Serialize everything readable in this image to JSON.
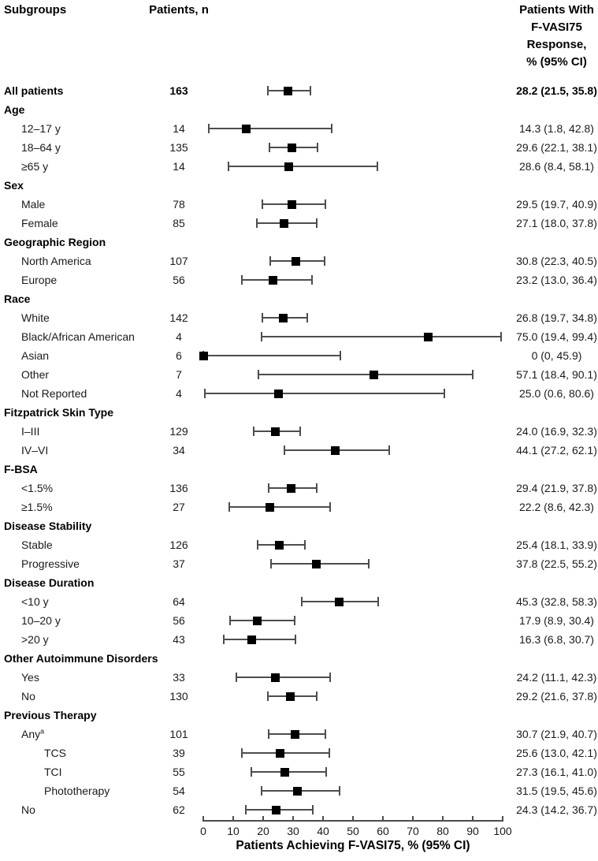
{
  "columns": {
    "subgroups": "Subgroups",
    "patients_n": "Patients, n",
    "response_lines": [
      "Patients With",
      "F-VASI75",
      "Response,",
      "% (95% CI)"
    ]
  },
  "colors": {
    "marker": "#000000",
    "error_bar": "#4d4d4d",
    "text": "#1a1a1a"
  },
  "chart_data": {
    "type": "forest",
    "xlabel": "Patients Achieving F-VASI75, % (95% CI)",
    "xlim": [
      0,
      100
    ],
    "xticks": [
      0,
      10,
      20,
      30,
      40,
      50,
      60,
      70,
      80,
      90,
      100
    ],
    "grid": false,
    "rows": [
      {
        "label": "All patients",
        "level": 0,
        "bold": true,
        "n": "163",
        "est": 28.2,
        "lo": 21.5,
        "hi": 35.8,
        "value": "28.2 (21.5, 35.8)"
      },
      {
        "label": "Age",
        "level": 0,
        "bold": true
      },
      {
        "label": "12–17 y",
        "level": 1,
        "n": "14",
        "est": 14.3,
        "lo": 1.8,
        "hi": 42.8,
        "value": "14.3 (1.8, 42.8)"
      },
      {
        "label": "18–64 y",
        "level": 1,
        "n": "135",
        "est": 29.6,
        "lo": 22.1,
        "hi": 38.1,
        "value": "29.6 (22.1, 38.1)"
      },
      {
        "label": "≥65 y",
        "level": 1,
        "n": "14",
        "est": 28.6,
        "lo": 8.4,
        "hi": 58.1,
        "value": "28.6 (8.4, 58.1)"
      },
      {
        "label": "Sex",
        "level": 0,
        "bold": true
      },
      {
        "label": "Male",
        "level": 1,
        "n": "78",
        "est": 29.5,
        "lo": 19.7,
        "hi": 40.9,
        "value": "29.5 (19.7, 40.9)"
      },
      {
        "label": "Female",
        "level": 1,
        "n": "85",
        "est": 27.1,
        "lo": 18.0,
        "hi": 37.8,
        "value": "27.1 (18.0, 37.8)"
      },
      {
        "label": "Geographic Region",
        "level": 0,
        "bold": true
      },
      {
        "label": "North America",
        "level": 1,
        "n": "107",
        "est": 30.8,
        "lo": 22.3,
        "hi": 40.5,
        "value": "30.8 (22.3, 40.5)"
      },
      {
        "label": "Europe",
        "level": 1,
        "n": "56",
        "est": 23.2,
        "lo": 13.0,
        "hi": 36.4,
        "value": "23.2 (13.0, 36.4)"
      },
      {
        "label": "Race",
        "level": 0,
        "bold": true
      },
      {
        "label": "White",
        "level": 1,
        "n": "142",
        "est": 26.8,
        "lo": 19.7,
        "hi": 34.8,
        "value": "26.8 (19.7, 34.8)"
      },
      {
        "label": "Black/African American",
        "level": 1,
        "n": "4",
        "est": 75.0,
        "lo": 19.4,
        "hi": 99.4,
        "value": "75.0 (19.4, 99.4)"
      },
      {
        "label": "Asian",
        "level": 1,
        "n": "6",
        "est": 0,
        "lo": 0,
        "hi": 45.9,
        "value": "0 (0, 45.9)"
      },
      {
        "label": "Other",
        "level": 1,
        "n": "7",
        "est": 57.1,
        "lo": 18.4,
        "hi": 90.1,
        "value": "57.1 (18.4, 90.1)"
      },
      {
        "label": "Not Reported",
        "level": 1,
        "n": "4",
        "est": 25.0,
        "lo": 0.6,
        "hi": 80.6,
        "value": "25.0 (0.6, 80.6)"
      },
      {
        "label": "Fitzpatrick Skin Type",
        "level": 0,
        "bold": true
      },
      {
        "label": "I–III",
        "level": 1,
        "n": "129",
        "est": 24.0,
        "lo": 16.9,
        "hi": 32.3,
        "value": "24.0 (16.9, 32.3)"
      },
      {
        "label": "IV–VI",
        "level": 1,
        "n": "34",
        "est": 44.1,
        "lo": 27.2,
        "hi": 62.1,
        "value": "44.1 (27.2, 62.1)"
      },
      {
        "label": "F-BSA",
        "level": 0,
        "bold": true
      },
      {
        "label": "<1.5%",
        "level": 1,
        "n": "136",
        "est": 29.4,
        "lo": 21.9,
        "hi": 37.8,
        "value": "29.4 (21.9, 37.8)"
      },
      {
        "label": "≥1.5%",
        "level": 1,
        "n": "27",
        "est": 22.2,
        "lo": 8.6,
        "hi": 42.3,
        "value": "22.2 (8.6, 42.3)"
      },
      {
        "label": "Disease Stability",
        "level": 0,
        "bold": true
      },
      {
        "label": "Stable",
        "level": 1,
        "n": "126",
        "est": 25.4,
        "lo": 18.1,
        "hi": 33.9,
        "value": "25.4 (18.1, 33.9)"
      },
      {
        "label": "Progressive",
        "level": 1,
        "n": "37",
        "est": 37.8,
        "lo": 22.5,
        "hi": 55.2,
        "value": "37.8 (22.5, 55.2)"
      },
      {
        "label": "Disease Duration",
        "level": 0,
        "bold": true
      },
      {
        "label": "<10 y",
        "level": 1,
        "n": "64",
        "est": 45.3,
        "lo": 32.8,
        "hi": 58.3,
        "value": "45.3 (32.8, 58.3)"
      },
      {
        "label": "10–20 y",
        "level": 1,
        "n": "56",
        "est": 17.9,
        "lo": 8.9,
        "hi": 30.4,
        "value": "17.9 (8.9, 30.4)"
      },
      {
        "label": ">20 y",
        "level": 1,
        "n": "43",
        "est": 16.3,
        "lo": 6.8,
        "hi": 30.7,
        "value": "16.3 (6.8, 30.7)"
      },
      {
        "label": "Other Autoimmune Disorders",
        "level": 0,
        "bold": true
      },
      {
        "label": "Yes",
        "level": 1,
        "n": "33",
        "est": 24.2,
        "lo": 11.1,
        "hi": 42.3,
        "value": "24.2 (11.1, 42.3)"
      },
      {
        "label": "No",
        "level": 1,
        "n": "130",
        "est": 29.2,
        "lo": 21.6,
        "hi": 37.8,
        "value": "29.2 (21.6, 37.8)"
      },
      {
        "label": "Previous Therapy",
        "level": 0,
        "bold": true
      },
      {
        "label": "Any",
        "sup": "a",
        "level": 1,
        "n": "101",
        "est": 30.7,
        "lo": 21.9,
        "hi": 40.7,
        "value": "30.7 (21.9, 40.7)"
      },
      {
        "label": "TCS",
        "level": 2,
        "n": "39",
        "est": 25.6,
        "lo": 13.0,
        "hi": 42.1,
        "value": "25.6 (13.0, 42.1)"
      },
      {
        "label": "TCI",
        "level": 2,
        "n": "55",
        "est": 27.3,
        "lo": 16.1,
        "hi": 41.0,
        "value": "27.3 (16.1, 41.0)"
      },
      {
        "label": "Phototherapy",
        "level": 2,
        "n": "54",
        "est": 31.5,
        "lo": 19.5,
        "hi": 45.6,
        "value": "31.5 (19.5, 45.6)"
      },
      {
        "label": "No",
        "level": 1,
        "n": "62",
        "est": 24.3,
        "lo": 14.2,
        "hi": 36.7,
        "value": "24.3 (14.2, 36.7)"
      }
    ]
  }
}
